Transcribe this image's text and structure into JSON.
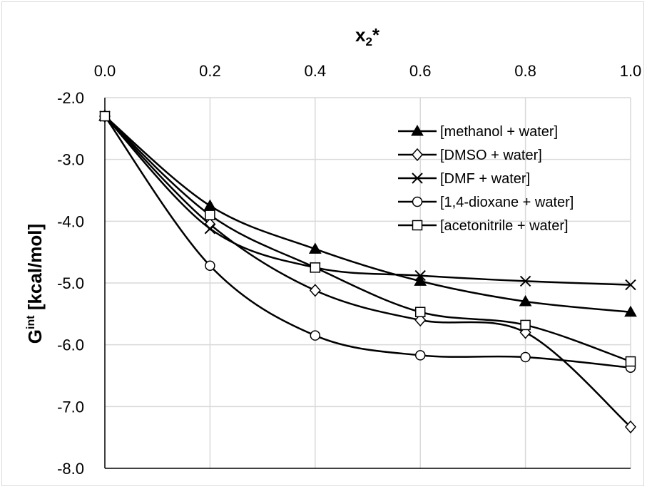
{
  "chart_data": {
    "type": "line",
    "x": [
      0.0,
      0.2,
      0.4,
      0.6,
      0.8,
      1.0
    ],
    "xlabel": {
      "main": "x",
      "sub": "2",
      "suffix": "*"
    },
    "ylabel": {
      "main": "G",
      "sup": "int",
      "suffix": " [kcal/mol]"
    },
    "xlim": [
      0.0,
      1.0
    ],
    "ylim": [
      -8.0,
      -2.0
    ],
    "xticks": [
      "0.0",
      "0.2",
      "0.4",
      "0.6",
      "0.8",
      "1.0"
    ],
    "yticks": [
      "-2.0",
      "-3.0",
      "-4.0",
      "-5.0",
      "-6.0",
      "-7.0",
      "-8.0"
    ],
    "x_axis_position": "top",
    "grid": true,
    "legend_position": "top-right",
    "series": [
      {
        "name": "[methanol + water]",
        "marker": "triangle-filled",
        "values": [
          -2.3,
          -3.75,
          -4.45,
          -4.97,
          -5.3,
          -5.47
        ]
      },
      {
        "name": "[DMSO + water]",
        "marker": "diamond-open",
        "values": [
          -2.3,
          -4.05,
          -5.12,
          -5.6,
          -5.8,
          -7.33
        ]
      },
      {
        "name": "[DMF + water]",
        "marker": "x",
        "values": [
          -2.3,
          -4.12,
          -4.75,
          -4.88,
          -4.97,
          -5.03
        ]
      },
      {
        "name": "[1,4-dioxane + water]",
        "marker": "circle-open",
        "values": [
          -2.3,
          -4.72,
          -5.85,
          -6.17,
          -6.2,
          -6.37
        ]
      },
      {
        "name": "[acetonitrile + water]",
        "marker": "square-open",
        "values": [
          -2.3,
          -3.9,
          -4.75,
          -5.47,
          -5.68,
          -6.27
        ]
      }
    ]
  }
}
